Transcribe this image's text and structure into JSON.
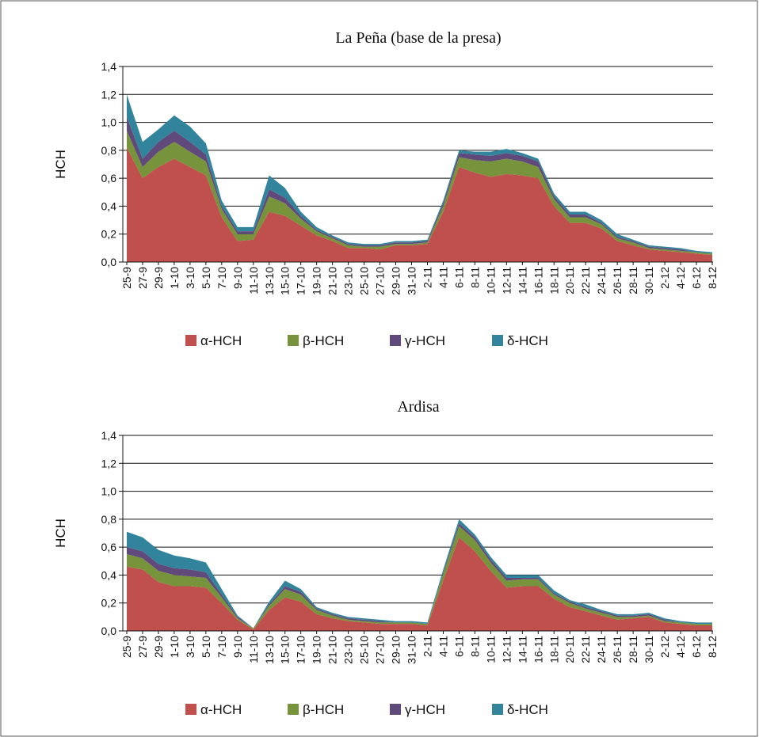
{
  "chart_data": [
    {
      "type": "area",
      "stacked": true,
      "title": "La Peña (base de la presa)",
      "y_label": "HCH",
      "categories": [
        "25-9",
        "27-9",
        "29-9",
        "1-10",
        "3-10",
        "5-10",
        "7-10",
        "9-10",
        "11-10",
        "13-10",
        "15-10",
        "17-10",
        "19-10",
        "21-10",
        "23-10",
        "25-10",
        "27-10",
        "29-10",
        "31-10",
        "2-11",
        "4-11",
        "6-11",
        "8-11",
        "10-11",
        "12-11",
        "14-11",
        "16-11",
        "18-11",
        "20-11",
        "22-11",
        "24-11",
        "26-11",
        "28-11",
        "30-11",
        "2-12",
        "4-12",
        "6-12",
        "8-12"
      ],
      "ylim": [
        0,
        1.4
      ],
      "yticks": [
        {
          "value": 0,
          "label": "0,0"
        },
        {
          "value": 0.2,
          "label": "0,2"
        },
        {
          "value": 0.4,
          "label": "0,4"
        },
        {
          "value": 0.6,
          "label": "0,6"
        },
        {
          "value": 0.8,
          "label": "0,8"
        },
        {
          "value": 1.0,
          "label": "1,0"
        },
        {
          "value": 1.2,
          "label": "1,2"
        },
        {
          "value": 1.4,
          "label": "1,4"
        }
      ],
      "grid": true,
      "series": [
        {
          "name": "α-HCH",
          "color": "#c0504d",
          "values": [
            0.82,
            0.6,
            0.68,
            0.74,
            0.68,
            0.62,
            0.32,
            0.15,
            0.16,
            0.36,
            0.33,
            0.26,
            0.19,
            0.15,
            0.1,
            0.1,
            0.09,
            0.12,
            0.12,
            0.13,
            0.36,
            0.68,
            0.64,
            0.61,
            0.63,
            0.62,
            0.6,
            0.4,
            0.28,
            0.28,
            0.24,
            0.15,
            0.12,
            0.09,
            0.08,
            0.07,
            0.06,
            0.05
          ]
        },
        {
          "name": "β-HCH",
          "color": "#77933c",
          "values": [
            0.12,
            0.08,
            0.11,
            0.12,
            0.11,
            0.1,
            0.06,
            0.05,
            0.04,
            0.11,
            0.09,
            0.05,
            0.03,
            0.02,
            0.02,
            0.01,
            0.02,
            0.01,
            0.01,
            0.01,
            0.04,
            0.07,
            0.09,
            0.11,
            0.11,
            0.1,
            0.08,
            0.05,
            0.04,
            0.04,
            0.03,
            0.02,
            0.02,
            0.01,
            0.01,
            0.01,
            0.01,
            0.01
          ]
        },
        {
          "name": "γ-HCH",
          "color": "#604a7b",
          "values": [
            0.1,
            0.06,
            0.07,
            0.08,
            0.07,
            0.05,
            0.02,
            0.02,
            0.02,
            0.05,
            0.04,
            0.02,
            0.01,
            0.01,
            0.01,
            0.01,
            0.01,
            0.01,
            0.01,
            0.01,
            0.02,
            0.03,
            0.04,
            0.04,
            0.04,
            0.04,
            0.04,
            0.02,
            0.02,
            0.02,
            0.01,
            0.01,
            0.01,
            0.01,
            0.01,
            0.01,
            0,
            0
          ]
        },
        {
          "name": "δ-HCH",
          "color": "#31849b",
          "values": [
            0.16,
            0.12,
            0.09,
            0.11,
            0.11,
            0.08,
            0.04,
            0.03,
            0.03,
            0.1,
            0.07,
            0.03,
            0.02,
            0.01,
            0.01,
            0.01,
            0.01,
            0.01,
            0.01,
            0.01,
            0.02,
            0.02,
            0.02,
            0.03,
            0.03,
            0.02,
            0.02,
            0.02,
            0.02,
            0.02,
            0.02,
            0.02,
            0.01,
            0.01,
            0.01,
            0.01,
            0.01,
            0.01
          ]
        }
      ]
    },
    {
      "type": "area",
      "stacked": true,
      "title": "Ardisa",
      "y_label": "HCH",
      "categories": [
        "25-9",
        "27-9",
        "29-9",
        "1-10",
        "3-10",
        "5-10",
        "7-10",
        "9-10",
        "11-10",
        "13-10",
        "15-10",
        "17-10",
        "19-10",
        "21-10",
        "23-10",
        "25-10",
        "27-10",
        "29-10",
        "31-10",
        "2-11",
        "4-11",
        "6-11",
        "8-11",
        "10-11",
        "12-11",
        "14-11",
        "16-11",
        "18-11",
        "20-11",
        "22-11",
        "24-11",
        "26-11",
        "28-11",
        "30-11",
        "2-12",
        "4-12",
        "6-12",
        "8-12"
      ],
      "ylim": [
        0,
        1.4
      ],
      "yticks": [
        {
          "value": 0,
          "label": "0,0"
        },
        {
          "value": 0.2,
          "label": "0,2"
        },
        {
          "value": 0.4,
          "label": "0,4"
        },
        {
          "value": 0.6,
          "label": "0,6"
        },
        {
          "value": 0.8,
          "label": "0,8"
        },
        {
          "value": 1.0,
          "label": "1,0"
        },
        {
          "value": 1.2,
          "label": "1,2"
        },
        {
          "value": 1.4,
          "label": "1,4"
        }
      ],
      "grid": true,
      "series": [
        {
          "name": "α-HCH",
          "color": "#c0504d",
          "values": [
            0.46,
            0.44,
            0.35,
            0.32,
            0.32,
            0.31,
            0.2,
            0.08,
            0.01,
            0.15,
            0.24,
            0.21,
            0.12,
            0.09,
            0.07,
            0.06,
            0.05,
            0.05,
            0.05,
            0.04,
            0.36,
            0.67,
            0.57,
            0.43,
            0.31,
            0.32,
            0.32,
            0.23,
            0.17,
            0.14,
            0.11,
            0.08,
            0.09,
            0.1,
            0.06,
            0.05,
            0.04,
            0.04
          ]
        },
        {
          "name": "β-HCH",
          "color": "#77933c",
          "values": [
            0.09,
            0.08,
            0.08,
            0.08,
            0.07,
            0.07,
            0.04,
            0.01,
            0.01,
            0.03,
            0.06,
            0.05,
            0.03,
            0.02,
            0.01,
            0.01,
            0.01,
            0.01,
            0.01,
            0.01,
            0.05,
            0.08,
            0.08,
            0.06,
            0.05,
            0.05,
            0.05,
            0.03,
            0.03,
            0.02,
            0.02,
            0.02,
            0.01,
            0.01,
            0.01,
            0.01,
            0.01,
            0.01
          ]
        },
        {
          "name": "γ-HCH",
          "color": "#604a7b",
          "values": [
            0.05,
            0.05,
            0.05,
            0.05,
            0.05,
            0.04,
            0.02,
            0.01,
            0,
            0.01,
            0.02,
            0.02,
            0.01,
            0.01,
            0.01,
            0.01,
            0.01,
            0,
            0,
            0,
            0.01,
            0.02,
            0.02,
            0.02,
            0.02,
            0.01,
            0.01,
            0.01,
            0.01,
            0.01,
            0.01,
            0.01,
            0.01,
            0.01,
            0.01,
            0,
            0,
            0
          ]
        },
        {
          "name": "δ-HCH",
          "color": "#31849b",
          "values": [
            0.11,
            0.1,
            0.1,
            0.09,
            0.08,
            0.07,
            0.04,
            0.01,
            0,
            0.02,
            0.04,
            0.02,
            0.01,
            0.01,
            0.01,
            0.01,
            0.01,
            0.01,
            0.01,
            0.01,
            0.02,
            0.03,
            0.02,
            0.02,
            0.02,
            0.02,
            0.02,
            0.02,
            0.01,
            0.02,
            0.01,
            0.01,
            0.01,
            0.01,
            0.01,
            0.01,
            0.01,
            0.01
          ]
        }
      ]
    }
  ]
}
